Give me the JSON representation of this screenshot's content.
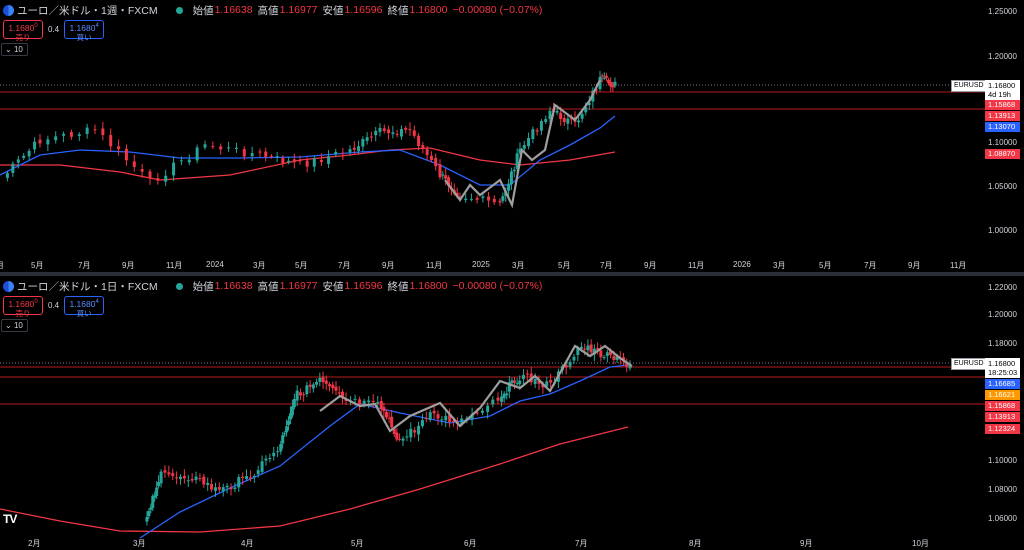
{
  "colors": {
    "up": "#26a69a",
    "down": "#f23645",
    "ma_fast": "#2962ff",
    "ma_slow": "#f23645",
    "pattern": "#9e9e9e",
    "line_red": "#b71c1c"
  },
  "top": {
    "header": {
      "symbol": "ユーロ／米ドル・1週・FXCM",
      "o_label": "始値",
      "o": "1.16638",
      "h_label": "高値",
      "h": "1.16977",
      "l_label": "安値",
      "l": "1.16596",
      "c_label": "終値",
      "c": "1.16800",
      "chg": "−0.00080 (−0.07%)"
    },
    "sell": {
      "price": "1.1680",
      "sup": "0",
      "label": "売り"
    },
    "buy": {
      "price": "1.1680",
      "sup": "4",
      "label": "買い"
    },
    "spread": "0.4",
    "volume": "10",
    "symbol_tag": "EURUSD",
    "price_box": {
      "price": "1.16800",
      "timer": "4d 19h"
    },
    "tags": [
      {
        "label": "1.15868",
        "color": "#f23645"
      },
      {
        "label": "1.13913",
        "color": "#f23645"
      },
      {
        "label": "1.13070",
        "color": "#2962ff"
      },
      {
        "label": "1.08870",
        "color": "#f23645"
      }
    ],
    "y_ticks": [
      "1.25000",
      "1.20000",
      "1.10000",
      "1.05000",
      "1.00000"
    ],
    "x_ticks": [
      "月",
      "5月",
      "7月",
      "9月",
      "11月",
      "2024",
      "3月",
      "5月",
      "7月",
      "9月",
      "11月",
      "2025",
      "3月",
      "5月",
      "7月",
      "9月",
      "11月",
      "2026",
      "3月",
      "5月",
      "7月",
      "9月",
      "11月"
    ]
  },
  "bottom": {
    "header": {
      "symbol": "ユーロ／米ドル・1日・FXCM",
      "o_label": "始値",
      "o": "1.16638",
      "h_label": "高値",
      "h": "1.16977",
      "l_label": "安値",
      "l": "1.16596",
      "c_label": "終値",
      "c": "1.16800",
      "chg": "−0.00080 (−0.07%)"
    },
    "sell": {
      "price": "1.1680",
      "sup": "0",
      "label": "売り"
    },
    "buy": {
      "price": "1.1680",
      "sup": "4",
      "label": "買い"
    },
    "spread": "0.4",
    "volume": "10",
    "symbol_tag": "EURUSD",
    "price_box": {
      "price": "1.16800",
      "timer": "18:25:03"
    },
    "tags": [
      {
        "label": "1.16685",
        "color": "#2962ff"
      },
      {
        "label": "1.16621",
        "color": "#ff9800"
      },
      {
        "label": "1.15868",
        "color": "#f23645"
      },
      {
        "label": "1.13913",
        "color": "#f23645"
      },
      {
        "label": "1.12324",
        "color": "#f23645"
      }
    ],
    "y_ticks": [
      "1.22000",
      "1.20000",
      "1.18000",
      "1.10000",
      "1.08000",
      "1.06000"
    ],
    "x_ticks": [
      "2月",
      "3月",
      "4月",
      "5月",
      "6月",
      "7月",
      "8月",
      "9月",
      "10月"
    ]
  },
  "logo": "TV"
}
